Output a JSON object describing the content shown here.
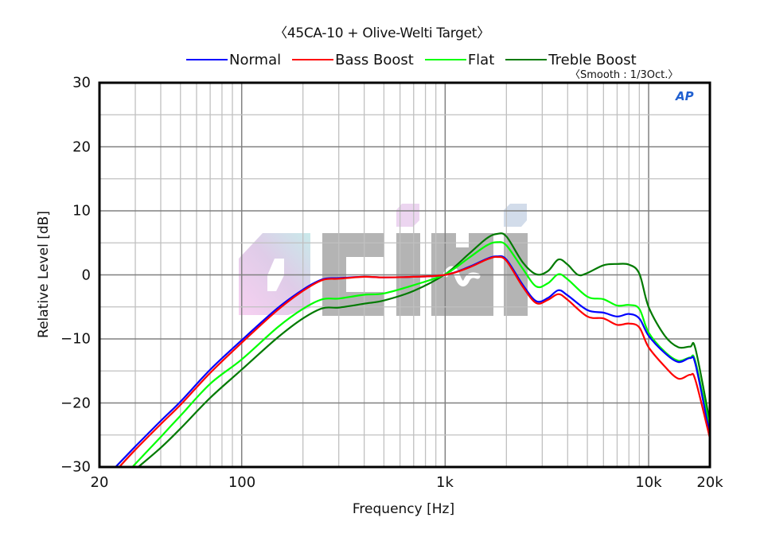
{
  "header": {
    "title": "〈45CA-10 + Olive-Welti Target〉",
    "smoothing_note": "〈Smooth : 1/3Oct.〉"
  },
  "legend": [
    {
      "label": "Normal",
      "color": "#0000ff"
    },
    {
      "label": "Bass Boost",
      "color": "#ff0000"
    },
    {
      "label": "Flat",
      "color": "#00ff00"
    },
    {
      "label": "Treble Boost",
      "color": "#007a00"
    }
  ],
  "axes": {
    "xlabel": "Frequency [Hz]",
    "ylabel": "Relative Level [dB]",
    "xticks": [
      {
        "value": 20,
        "label": "20"
      },
      {
        "value": 100,
        "label": "100"
      },
      {
        "value": 1000,
        "label": "1k"
      },
      {
        "value": 10000,
        "label": "10k"
      },
      {
        "value": 20000,
        "label": "20k"
      }
    ],
    "yticks": [
      {
        "value": 30,
        "label": "30"
      },
      {
        "value": 20,
        "label": "20"
      },
      {
        "value": 10,
        "label": "10"
      },
      {
        "value": 0,
        "label": "0"
      },
      {
        "value": -10,
        "label": "−10"
      },
      {
        "value": -20,
        "label": "−20"
      },
      {
        "value": -30,
        "label": "−30"
      }
    ]
  },
  "logo": {
    "text": "AP"
  },
  "watermark": {
    "text": "EIHI"
  },
  "chart_data": {
    "type": "line",
    "title": "〈45CA-10 + Olive-Welti Target〉",
    "subtitle": "〈Smooth : 1/3Oct.〉",
    "xlabel": "Frequency [Hz]",
    "ylabel": "Relative Level [dB]",
    "xscale": "log",
    "xlim": [
      20,
      20000
    ],
    "ylim": [
      -30,
      30
    ],
    "grid": true,
    "legend_position": "top",
    "series": [
      {
        "name": "Normal",
        "color": "#0000ff",
        "x": [
          24,
          30,
          40,
          50,
          70,
          100,
          150,
          200,
          250,
          300,
          400,
          500,
          700,
          1000,
          1300,
          1600,
          1800,
          2000,
          2400,
          2800,
          3200,
          3600,
          4000,
          5000,
          6000,
          7000,
          8000,
          9000,
          10000,
          12000,
          14000,
          16000,
          17000,
          20000
        ],
        "y": [
          -30,
          -26.8,
          -22.8,
          -19.8,
          -14.8,
          -10.2,
          -5.2,
          -2.3,
          -0.7,
          -0.5,
          -0.3,
          -0.4,
          -0.3,
          0,
          1.2,
          2.5,
          2.9,
          2.4,
          -1.5,
          -4.1,
          -3.6,
          -2.4,
          -3.2,
          -5.5,
          -5.9,
          -6.5,
          -6.1,
          -6.8,
          -9.5,
          -12.2,
          -13.6,
          -13.0,
          -14.0,
          -25
        ]
      },
      {
        "name": "Bass Boost",
        "color": "#ff0000",
        "x": [
          25,
          30,
          40,
          50,
          70,
          100,
          150,
          200,
          250,
          300,
          400,
          500,
          700,
          1000,
          1300,
          1600,
          1800,
          2000,
          2400,
          2800,
          3200,
          3600,
          4000,
          5000,
          6000,
          7000,
          8000,
          9000,
          10000,
          12000,
          14000,
          16000,
          17000,
          20000
        ],
        "y": [
          -30,
          -27.3,
          -23.3,
          -20.3,
          -15.3,
          -10.6,
          -5.5,
          -2.5,
          -0.8,
          -0.6,
          -0.3,
          -0.4,
          -0.3,
          0,
          1.1,
          2.4,
          2.8,
          2.2,
          -1.8,
          -4.4,
          -3.9,
          -3.0,
          -3.9,
          -6.5,
          -6.8,
          -7.8,
          -7.6,
          -8.2,
          -11.3,
          -14.3,
          -16.2,
          -15.6,
          -16.5,
          -25.5
        ]
      },
      {
        "name": "Flat",
        "color": "#00ff00",
        "x": [
          29,
          40,
          50,
          70,
          100,
          150,
          200,
          250,
          300,
          400,
          500,
          700,
          1000,
          1300,
          1600,
          1800,
          2000,
          2400,
          2800,
          3200,
          3600,
          4000,
          5000,
          6000,
          7000,
          8000,
          9000,
          10000,
          12000,
          14000,
          16000,
          17000,
          20000
        ],
        "y": [
          -30,
          -25.3,
          -22.0,
          -17.0,
          -13.2,
          -8.2,
          -5.3,
          -3.8,
          -3.7,
          -3.1,
          -2.9,
          -1.6,
          0.1,
          2.6,
          4.6,
          5.1,
          4.6,
          1.0,
          -1.8,
          -1.3,
          0.1,
          -0.7,
          -3.4,
          -3.8,
          -4.8,
          -4.7,
          -5.3,
          -9.0,
          -12.0,
          -13.4,
          -12.9,
          -13.6,
          -24
        ]
      },
      {
        "name": "Treble Boost",
        "color": "#007a00",
        "x": [
          31,
          40,
          50,
          70,
          100,
          150,
          200,
          250,
          300,
          400,
          500,
          700,
          1000,
          1300,
          1600,
          1800,
          2000,
          2400,
          2800,
          3200,
          3600,
          4000,
          4500,
          5000,
          6000,
          7000,
          8000,
          9000,
          10000,
          12000,
          14000,
          16000,
          17000,
          20000
        ],
        "y": [
          -30,
          -27.0,
          -24.0,
          -19.2,
          -14.8,
          -9.8,
          -6.8,
          -5.2,
          -5.1,
          -4.5,
          -4.0,
          -2.5,
          0.1,
          3.2,
          5.7,
          6.4,
          6.0,
          2.0,
          0.1,
          0.6,
          2.4,
          1.6,
          0.0,
          0.3,
          1.5,
          1.7,
          1.6,
          0.2,
          -5.0,
          -9.5,
          -11.3,
          -11.2,
          -11.6,
          -23
        ]
      }
    ]
  }
}
